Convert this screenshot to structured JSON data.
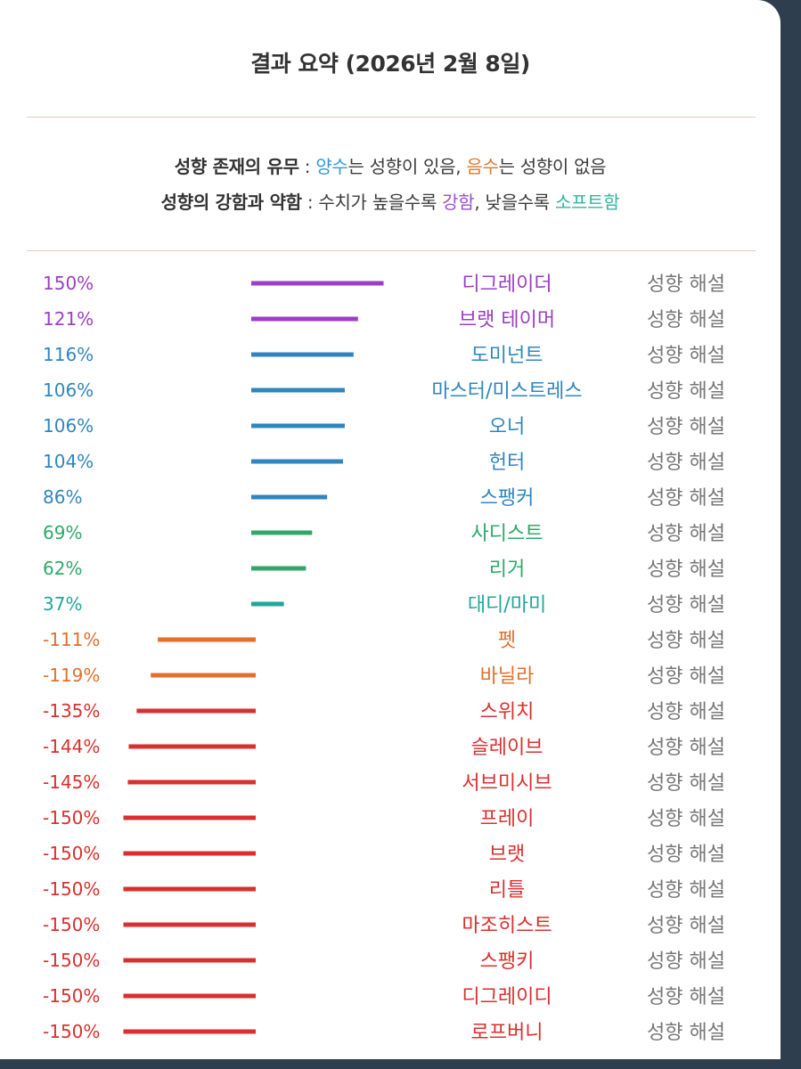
{
  "header": {
    "title": "결과 요약 (2026년 2월 8일)"
  },
  "legend": {
    "line1": {
      "label": "성향 존재의 유무",
      "sep": " : ",
      "positive_word": "양수",
      "text_a": "는 성향이 있음, ",
      "negative_word": "음수",
      "text_b": "는 성향이 없음"
    },
    "line2": {
      "label": "성향의 강함과 약함",
      "sep": " : ",
      "text_a": "수치가 높을수록 ",
      "strong_word": "강함",
      "text_b": ", 낮을수록 ",
      "soft_word": "소프트함"
    },
    "colors": {
      "positive": "#2e9bd6",
      "negative": "#e07a2c",
      "strong": "#9b4fc8",
      "soft": "#2fb5a0"
    }
  },
  "explain_label": "성향 해설",
  "chart_data": {
    "type": "bar",
    "orientation": "horizontal",
    "unit": "%",
    "xlim": [
      -150,
      150
    ],
    "categories": [
      "디그레이더",
      "브랫 테이머",
      "도미넌트",
      "마스터/미스트레스",
      "오너",
      "헌터",
      "스팽커",
      "사디스트",
      "리거",
      "대디/마미",
      "펫",
      "바닐라",
      "스위치",
      "슬레이브",
      "서브미시브",
      "프레이",
      "브랫",
      "리틀",
      "마조히스트",
      "스팽키",
      "디그레이디",
      "로프버니"
    ],
    "values": [
      150,
      121,
      116,
      106,
      106,
      104,
      86,
      69,
      62,
      37,
      -111,
      -119,
      -135,
      -144,
      -145,
      -150,
      -150,
      -150,
      -150,
      -150,
      -150,
      -150
    ],
    "labels": [
      "150%",
      "121%",
      "116%",
      "106%",
      "106%",
      "104%",
      "86%",
      "69%",
      "62%",
      "37%",
      "-111%",
      "-119%",
      "-135%",
      "-144%",
      "-145%",
      "-150%",
      "-150%",
      "-150%",
      "-150%",
      "-150%",
      "-150%",
      "-150%"
    ],
    "colors": [
      "#9b3fc4",
      "#9b3fc4",
      "#2f86bf",
      "#2f86bf",
      "#2f86bf",
      "#2f86bf",
      "#2f86bf",
      "#2fa86a",
      "#2fa86a",
      "#1fa89a",
      "#e0702c",
      "#e0702c",
      "#d9302f",
      "#d9302f",
      "#d9302f",
      "#d9302f",
      "#d9302f",
      "#d9302f",
      "#d9302f",
      "#d9302f",
      "#d9302f",
      "#d9302f"
    ],
    "grid": false,
    "legend": "none"
  }
}
